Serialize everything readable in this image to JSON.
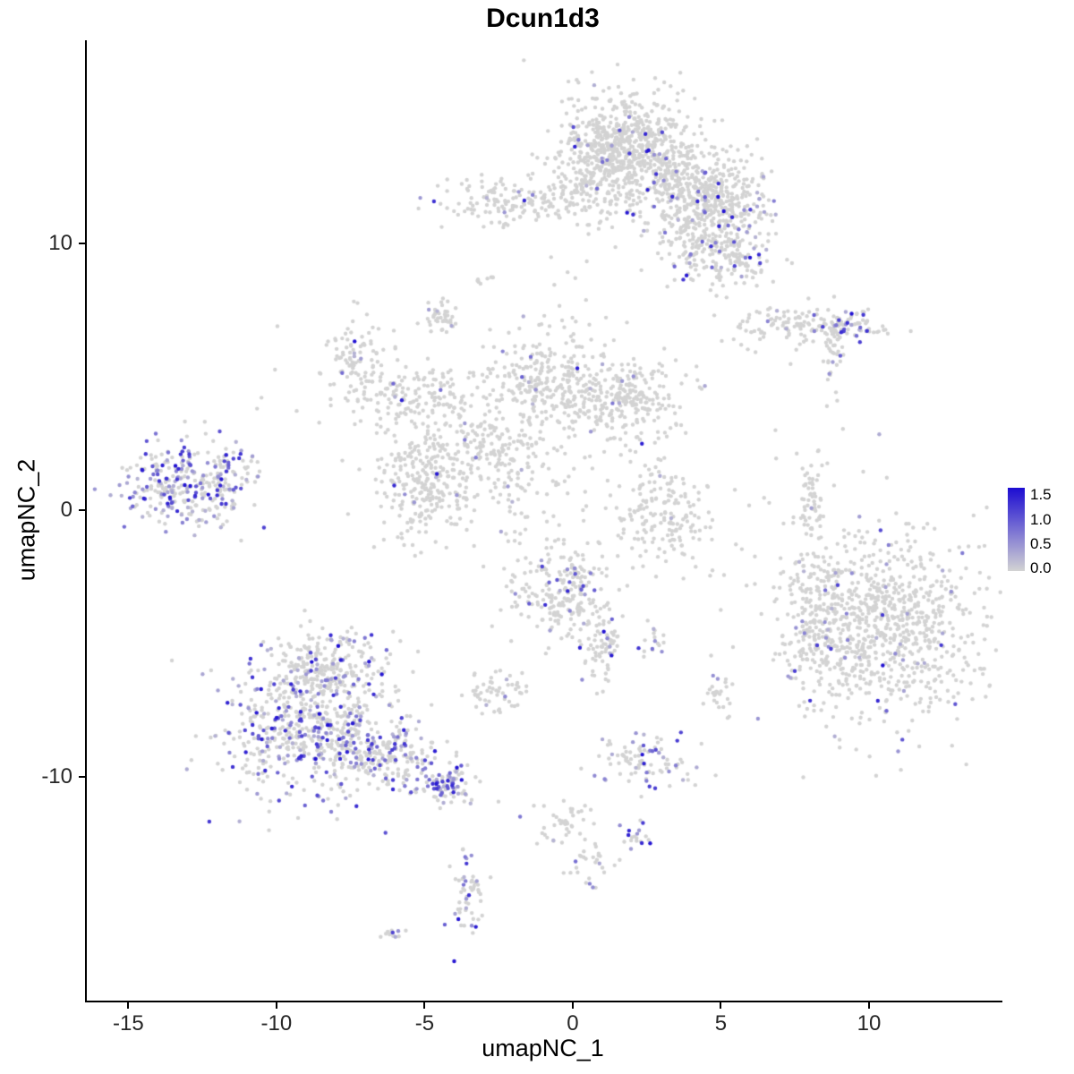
{
  "chart_data": {
    "type": "scatter",
    "title": "Dcun1d3",
    "xlabel": "umapNC_1",
    "ylabel": "umapNC_2",
    "xlim": [
      -16.4,
      14.5
    ],
    "ylim": [
      -18.4,
      17.6
    ],
    "grid": false,
    "axis_style": "classic-left-bottom-only",
    "xticks": [
      {
        "v": -15,
        "label": "-15"
      },
      {
        "v": -10,
        "label": "-10"
      },
      {
        "v": -5,
        "label": "-5"
      },
      {
        "v": 0,
        "label": "0"
      },
      {
        "v": 5,
        "label": "5"
      },
      {
        "v": 10,
        "label": "10"
      }
    ],
    "yticks": [
      {
        "v": 10,
        "label": "10"
      },
      {
        "v": 0,
        "label": "0"
      },
      {
        "v": -10,
        "label": "-10"
      }
    ],
    "legend": {
      "position": "right",
      "ticks": [
        {
          "v": 1.5,
          "label": "1.5"
        },
        {
          "v": 1.0,
          "label": "1.0"
        },
        {
          "v": 0.5,
          "label": "0.5"
        },
        {
          "v": 0.0,
          "label": "0.0"
        }
      ],
      "value_min": 0.0,
      "value_max": 1.65
    },
    "point_style": {
      "radius": 2.2,
      "color_low": "#d3d3d3",
      "color_high": "#1c0cd2",
      "value_max": 1.6
    },
    "clusters": [
      {
        "x": 1.6,
        "y": 14.0,
        "sx": 1.1,
        "sy": 0.9,
        "n": 420,
        "expr": 0.03
      },
      {
        "x": 2.6,
        "y": 13.0,
        "sx": 1.3,
        "sy": 0.9,
        "n": 300,
        "expr": 0.05
      },
      {
        "x": 0.9,
        "y": 12.6,
        "sx": 0.5,
        "sy": 0.8,
        "n": 120,
        "expr": 0.03
      },
      {
        "x": 3.9,
        "y": 11.9,
        "sx": 1.0,
        "sy": 0.8,
        "n": 260,
        "expr": 0.08
      },
      {
        "x": 5.2,
        "y": 11.5,
        "sx": 0.8,
        "sy": 0.7,
        "n": 200,
        "expr": 0.1
      },
      {
        "x": 4.4,
        "y": 10.0,
        "sx": 0.8,
        "sy": 0.8,
        "n": 160,
        "expr": 0.09
      },
      {
        "x": 5.6,
        "y": 9.5,
        "sx": 0.5,
        "sy": 0.5,
        "n": 80,
        "expr": 0.15
      },
      {
        "x": -2.2,
        "y": 11.5,
        "sx": 1.1,
        "sy": 0.45,
        "n": 130,
        "expr": 0.04
      },
      {
        "x": -0.2,
        "y": 11.8,
        "sx": 0.5,
        "sy": 0.4,
        "n": 50,
        "expr": 0.04
      },
      {
        "x": 0.3,
        "y": 8.0,
        "sx": 0.5,
        "sy": 1.0,
        "n": 10,
        "expr": 0.0
      },
      {
        "x": 8.0,
        "y": 6.9,
        "sx": 1.3,
        "sy": 0.35,
        "n": 140,
        "expr": 0.06
      },
      {
        "x": 9.3,
        "y": 6.8,
        "sx": 0.5,
        "sy": 0.3,
        "n": 45,
        "expr": 0.45
      },
      {
        "x": 8.8,
        "y": 5.8,
        "sx": 0.18,
        "sy": 0.55,
        "n": 30,
        "expr": 0.05
      },
      {
        "x": -7.2,
        "y": 5.5,
        "sx": 0.55,
        "sy": 0.95,
        "n": 110,
        "expr": 0.07
      },
      {
        "x": -5.2,
        "y": 4.3,
        "sx": 1.0,
        "sy": 0.6,
        "n": 130,
        "expr": 0.04
      },
      {
        "x": -0.9,
        "y": 5.0,
        "sx": 0.9,
        "sy": 1.0,
        "n": 230,
        "expr": 0.05
      },
      {
        "x": 1.6,
        "y": 4.2,
        "sx": 1.0,
        "sy": 0.75,
        "n": 280,
        "expr": 0.04
      },
      {
        "x": -4.9,
        "y": 1.0,
        "sx": 0.85,
        "sy": 1.15,
        "n": 280,
        "expr": 0.03
      },
      {
        "x": -2.3,
        "y": 2.2,
        "sx": 0.9,
        "sy": 0.8,
        "n": 90,
        "expr": 0.03
      },
      {
        "x": -3.6,
        "y": 3.4,
        "sx": 1.2,
        "sy": 0.9,
        "n": 70,
        "expr": 0.02
      },
      {
        "x": -13.1,
        "y": 0.9,
        "sx": 1.05,
        "sy": 0.8,
        "n": 300,
        "expr": 0.45
      },
      {
        "x": -11.5,
        "y": 1.5,
        "sx": 0.5,
        "sy": 0.5,
        "n": 40,
        "expr": 0.2
      },
      {
        "x": 8.1,
        "y": 0.1,
        "sx": 0.25,
        "sy": 1.1,
        "n": 70,
        "expr": 0.02
      },
      {
        "x": 3.0,
        "y": -0.3,
        "sx": 0.85,
        "sy": 0.85,
        "n": 160,
        "expr": 0.02
      },
      {
        "x": 10.6,
        "y": -4.4,
        "sx": 1.7,
        "sy": 1.8,
        "n": 850,
        "expr": 0.05
      },
      {
        "x": 8.3,
        "y": -4.2,
        "sx": 0.7,
        "sy": 1.3,
        "n": 150,
        "expr": 0.08
      },
      {
        "x": -0.4,
        "y": -3.1,
        "sx": 0.8,
        "sy": 0.85,
        "n": 230,
        "expr": 0.12
      },
      {
        "x": 1.0,
        "y": -4.9,
        "sx": 0.4,
        "sy": 0.8,
        "n": 80,
        "expr": 0.08
      },
      {
        "x": 2.8,
        "y": -4.9,
        "sx": 0.25,
        "sy": 0.25,
        "n": 16,
        "expr": 0.35
      },
      {
        "x": -8.9,
        "y": -8.0,
        "sx": 1.5,
        "sy": 1.4,
        "n": 620,
        "expr": 0.32
      },
      {
        "x": -8.4,
        "y": -5.9,
        "sx": 1.0,
        "sy": 0.7,
        "n": 200,
        "expr": 0.22
      },
      {
        "x": -6.3,
        "y": -9.3,
        "sx": 1.3,
        "sy": 0.55,
        "n": 230,
        "expr": 0.3,
        "rot": -0.35
      },
      {
        "x": -4.15,
        "y": -10.3,
        "sx": 0.4,
        "sy": 0.3,
        "n": 70,
        "expr": 0.55
      },
      {
        "x": -2.6,
        "y": -6.9,
        "sx": 0.5,
        "sy": 0.4,
        "n": 55,
        "expr": 0.06
      },
      {
        "x": 4.95,
        "y": -7.0,
        "sx": 0.28,
        "sy": 0.3,
        "n": 25,
        "expr": 0.12
      },
      {
        "x": 2.4,
        "y": -9.4,
        "sx": 0.75,
        "sy": 0.45,
        "n": 95,
        "expr": 0.28
      },
      {
        "x": -0.4,
        "y": -11.8,
        "sx": 0.5,
        "sy": 0.5,
        "n": 40,
        "expr": 0.05
      },
      {
        "x": 2.1,
        "y": -12.3,
        "sx": 0.35,
        "sy": 0.3,
        "n": 20,
        "expr": 0.3
      },
      {
        "x": 0.6,
        "y": -13.1,
        "sx": 0.35,
        "sy": 0.3,
        "n": 22,
        "expr": 0.1
      },
      {
        "x": 0.7,
        "y": -14.0,
        "sx": 0.15,
        "sy": 0.15,
        "n": 5,
        "expr": 0.5
      },
      {
        "x": -3.5,
        "y": -14.3,
        "sx": 0.3,
        "sy": 0.75,
        "n": 55,
        "expr": 0.35
      },
      {
        "x": -6.1,
        "y": -15.9,
        "sx": 0.25,
        "sy": 0.15,
        "n": 12,
        "expr": 0.1
      },
      {
        "x": -2.9,
        "y": 8.6,
        "sx": 0.2,
        "sy": 0.3,
        "n": 8,
        "expr": 0.0
      },
      {
        "x": -4.4,
        "y": 7.3,
        "sx": 0.4,
        "sy": 0.3,
        "n": 45,
        "expr": 0.02
      },
      {
        "x": -2.0,
        "y": 0.3,
        "sx": 0.6,
        "sy": 1.2,
        "n": 40,
        "expr": 0.02
      },
      {
        "x": -1.5,
        "y": 2.6,
        "sx": 1.5,
        "sy": 1.2,
        "n": 50,
        "expr": 0.02
      },
      {
        "x": 0.5,
        "y": 1.0,
        "sx": 2.2,
        "sy": 1.5,
        "n": 30,
        "expr": 0.03
      },
      {
        "x": 5.0,
        "y": -2.0,
        "sx": 2.0,
        "sy": 1.5,
        "n": 18,
        "expr": 0.05
      },
      {
        "x": -10.0,
        "y": 4.5,
        "sx": 2.0,
        "sy": 1.5,
        "n": 12,
        "expr": 0.05
      },
      {
        "x": 8.0,
        "y": 3.0,
        "sx": 1.5,
        "sy": 1.5,
        "n": 8,
        "expr": 0.1
      }
    ]
  }
}
